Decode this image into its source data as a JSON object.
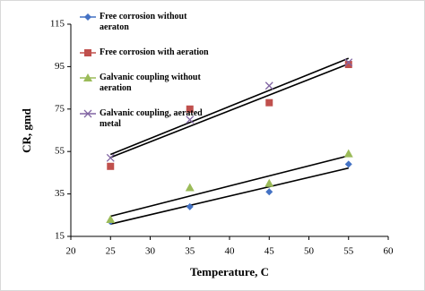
{
  "chart_data": {
    "type": "scatter",
    "x_label": "Temperature, C",
    "y_label": "CR, gmd",
    "xlim": [
      20,
      60
    ],
    "xticks": [
      20,
      25,
      30,
      35,
      40,
      45,
      50,
      55,
      60
    ],
    "ylim": [
      15,
      115
    ],
    "yticks": [
      15,
      35,
      55,
      75,
      95,
      115
    ],
    "trendline": true,
    "legend": "upper left",
    "series": [
      {
        "name": "Free corrosion without aeraton",
        "color": "#4472c4",
        "marker": "diamond",
        "x": [
          25,
          35,
          45,
          55
        ],
        "values": [
          22,
          29,
          36,
          49
        ]
      },
      {
        "name": "Free corrosion with aeration",
        "color": "#c0504d",
        "marker": "square",
        "x": [
          25,
          35,
          45,
          55
        ],
        "values": [
          48,
          75,
          78,
          96
        ]
      },
      {
        "name": "Galvanic coupling without aeration",
        "color": "#9bbb59",
        "marker": "triangle",
        "x": [
          25,
          35,
          45,
          55
        ],
        "values": [
          23,
          38,
          40,
          54
        ]
      },
      {
        "name": "Galvanic coupling, aerated metal",
        "color": "#8064a2",
        "marker": "x",
        "x": [
          25,
          35,
          45,
          55
        ],
        "values": [
          52,
          70,
          86,
          97
        ]
      }
    ]
  }
}
